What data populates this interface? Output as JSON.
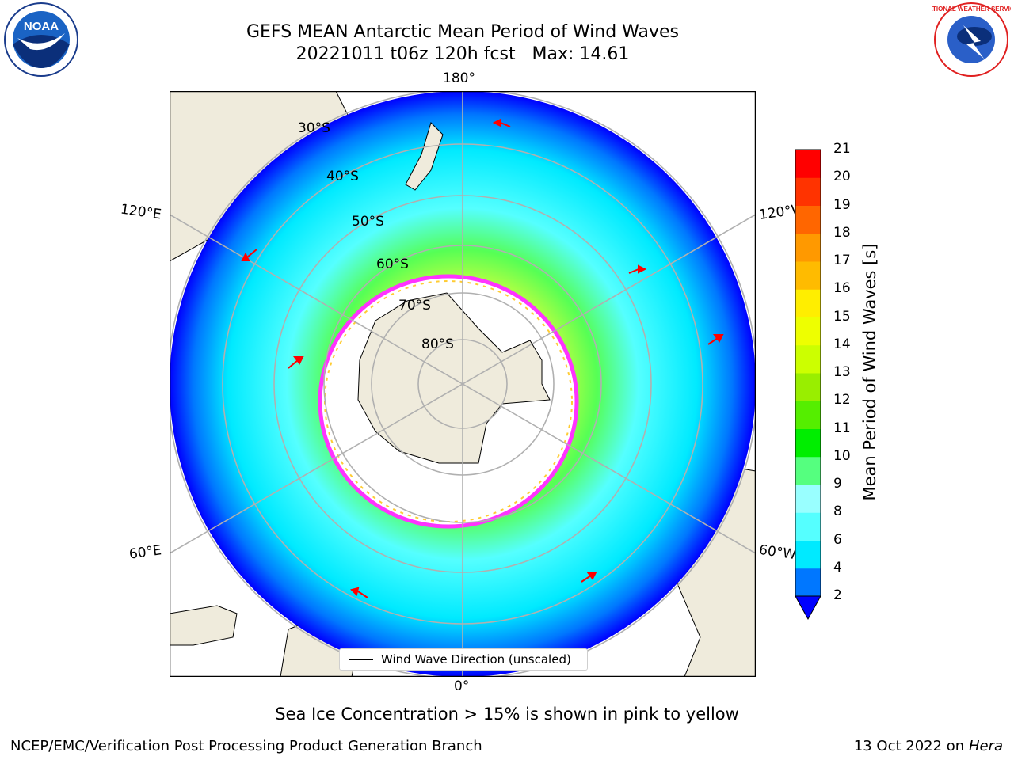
{
  "header": {
    "title_line1": "GEFS MEAN Antarctic Mean Period of Wind Waves",
    "title_line2": "20221011 t06z 120h fcst   Max: 14.61"
  },
  "map": {
    "lon_labels": {
      "top": "180°",
      "bottom": "0°",
      "left_upper": "120°E",
      "left_lower": "60°E",
      "right_upper": "120°W",
      "right_lower": "60°W"
    },
    "lat_labels": [
      "30°S",
      "40°S",
      "50°S",
      "60°S",
      "70°S",
      "80°S"
    ],
    "legend_label": "Wind Wave Direction (unscaled)",
    "colors": {
      "ocean_low": "#0000ff",
      "land": "#efebdc",
      "ice_edge": "#ff33ff",
      "arrow": "#ff0000"
    }
  },
  "colorbar": {
    "label": "Mean Period of Wind Waves [s]",
    "ticks": [
      "2",
      "4",
      "6",
      "8",
      "9",
      "10",
      "11",
      "12",
      "13",
      "14",
      "15",
      "16",
      "17",
      "18",
      "19",
      "20",
      "21"
    ],
    "colors": [
      "#0000ff",
      "#0077ff",
      "#00eaff",
      "#55ffff",
      "#99ffff",
      "#55ff7f",
      "#00ee00",
      "#55ee00",
      "#99ee00",
      "#ccff00",
      "#eeff00",
      "#ffee00",
      "#ffbb00",
      "#ff9900",
      "#ff6600",
      "#ff3300",
      "#ff0000"
    ]
  },
  "notes": {
    "ice_note": "Sea Ice Concentration > 15% is shown in pink to yellow",
    "credit": "NCEP/EMC/Verification Post Processing Product Generation Branch",
    "date_prefix": "13 Oct 2022 on ",
    "date_machine": "Hera"
  },
  "logos": {
    "left": "NOAA",
    "right": "NATIONAL WEATHER SERVICE"
  }
}
